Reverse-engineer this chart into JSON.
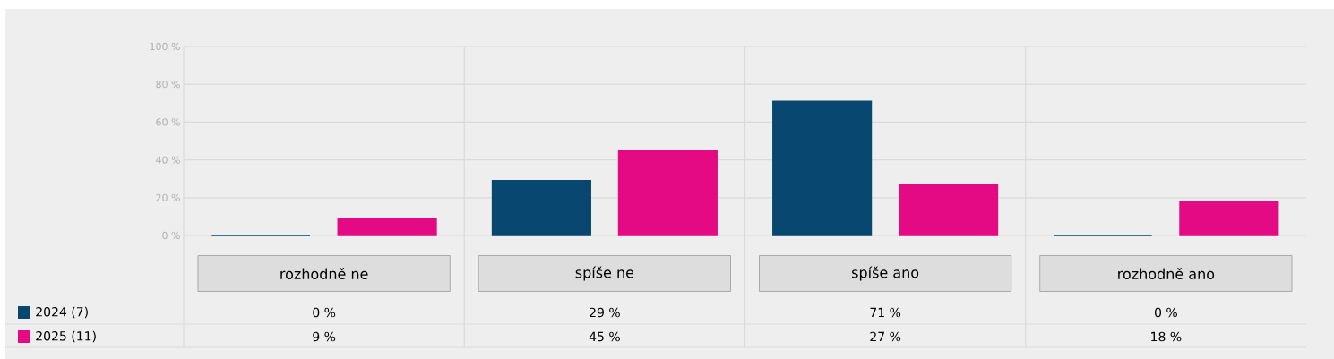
{
  "chart_data": {
    "type": "bar",
    "categories": [
      "rozhodně ne",
      "spíše ne",
      "spíše ano",
      "rozhodně ano"
    ],
    "series": [
      {
        "name": "2024 (7)",
        "color": "#08476f",
        "values": [
          0,
          29,
          71,
          0
        ],
        "value_labels": [
          "0 %",
          "29 %",
          "71 %",
          "0 %"
        ]
      },
      {
        "name": "2025 (11)",
        "color": "#e30a84",
        "values": [
          9,
          45,
          27,
          18
        ],
        "value_labels": [
          "9 %",
          "45 %",
          "27 %",
          "18 %"
        ]
      }
    ],
    "ylim": [
      0,
      100
    ],
    "yticks": [
      {
        "value": 0,
        "label": "0 %"
      },
      {
        "value": 20,
        "label": "20 %"
      },
      {
        "value": 40,
        "label": "40 %"
      },
      {
        "value": 60,
        "label": "60 %"
      },
      {
        "value": 80,
        "label": "80 %"
      },
      {
        "value": 100,
        "label": "100 %"
      }
    ],
    "grid": "y",
    "legend": "bottom left"
  }
}
